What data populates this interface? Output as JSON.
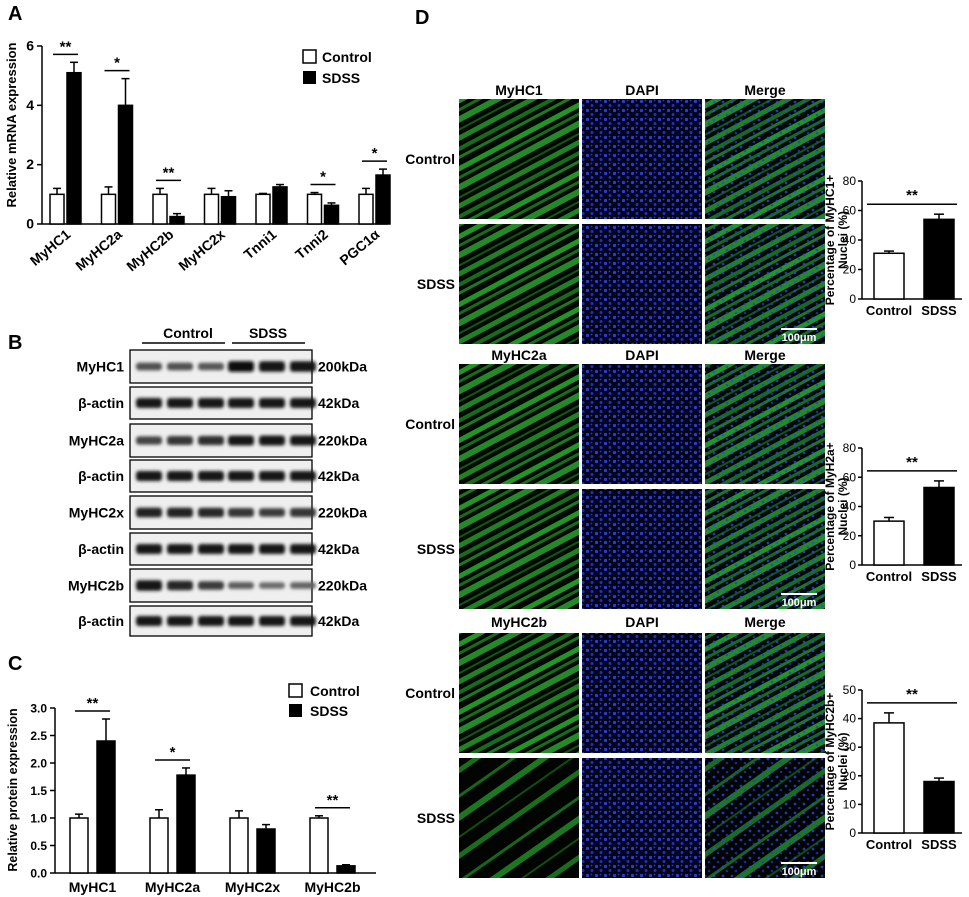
{
  "panels": {
    "A": {
      "letter": "A",
      "ylabel": "Relative mRNA expression",
      "legend": [
        "Control",
        "SDSS"
      ],
      "yticks": [
        "0",
        "2",
        "4",
        "6"
      ],
      "chart_data": {
        "type": "bar",
        "categories": [
          "MyHC1",
          "MyHC2a",
          "MyHC2b",
          "MyHC2x",
          "Tnni1",
          "Tnni2",
          "PGC1α"
        ],
        "ylim": [
          0,
          6
        ],
        "series": [
          {
            "name": "Control",
            "values": [
              1.0,
              1.0,
              1.0,
              1.0,
              1.0,
              1.0,
              1.0
            ],
            "errors": [
              0.2,
              0.25,
              0.2,
              0.2,
              0.03,
              0.06,
              0.2
            ]
          },
          {
            "name": "SDSS",
            "values": [
              5.1,
              4.0,
              0.25,
              0.92,
              1.25,
              0.63,
              1.65
            ],
            "errors": [
              0.35,
              0.9,
              0.1,
              0.2,
              0.08,
              0.08,
              0.2
            ]
          }
        ],
        "significance": [
          "**",
          "*",
          "**",
          "",
          "",
          "*",
          "*"
        ]
      }
    },
    "B": {
      "letter": "B",
      "groups": [
        "Control",
        "SDSS"
      ],
      "rows": [
        {
          "label": "MyHC1",
          "size": "200kDa",
          "intensity": [
            0.45,
            0.45,
            0.4,
            0.95,
            0.9,
            0.9
          ]
        },
        {
          "label": "β-actin",
          "size": "42kDa",
          "intensity": [
            0.85,
            0.85,
            0.85,
            0.85,
            0.85,
            0.85
          ]
        },
        {
          "label": "MyHC2a",
          "size": "220kDa",
          "intensity": [
            0.55,
            0.65,
            0.7,
            0.85,
            0.85,
            0.85
          ]
        },
        {
          "label": "β-actin",
          "size": "42kDa",
          "intensity": [
            0.85,
            0.85,
            0.85,
            0.85,
            0.85,
            0.85
          ]
        },
        {
          "label": "MyHC2x",
          "size": "220kDa",
          "intensity": [
            0.8,
            0.8,
            0.75,
            0.65,
            0.6,
            0.65
          ]
        },
        {
          "label": "β-actin",
          "size": "42kDa",
          "intensity": [
            0.85,
            0.85,
            0.85,
            0.85,
            0.85,
            0.85
          ]
        },
        {
          "label": "MyHC2b",
          "size": "220kDa",
          "intensity": [
            0.9,
            0.75,
            0.6,
            0.35,
            0.25,
            0.3
          ]
        },
        {
          "label": "β-actin",
          "size": "42kDa",
          "intensity": [
            0.85,
            0.85,
            0.85,
            0.85,
            0.85,
            0.85
          ]
        }
      ]
    },
    "C": {
      "letter": "C",
      "ylabel": "Relative protein expression",
      "legend": [
        "Control",
        "SDSS"
      ],
      "yticks": [
        "0.0",
        "0.5",
        "1.0",
        "1.5",
        "2.0",
        "2.5",
        "3.0"
      ],
      "chart_data": {
        "type": "bar",
        "categories": [
          "MyHC1",
          "MyHC2a",
          "MyHC2x",
          "MyHC2b"
        ],
        "ylim": [
          0,
          3.0
        ],
        "series": [
          {
            "name": "Control",
            "values": [
              1.0,
              1.0,
              1.0,
              1.0
            ],
            "errors": [
              0.07,
              0.15,
              0.13,
              0.04
            ]
          },
          {
            "name": "SDSS",
            "values": [
              2.4,
              1.78,
              0.8,
              0.13
            ],
            "errors": [
              0.4,
              0.13,
              0.08,
              0.02
            ]
          }
        ],
        "significance": [
          "**",
          "*",
          "",
          "**"
        ]
      }
    },
    "D": {
      "letter": "D",
      "row_labels": [
        "Control",
        "SDSS"
      ],
      "scale_bar": "100μm",
      "blocks": [
        {
          "columns": [
            "MyHC1",
            "DAPI",
            "Merge"
          ],
          "ylabel": [
            "Percentage of MyHC1+",
            "Nuclei (%)"
          ],
          "yticks": [
            "0",
            "20",
            "40",
            "60",
            "80"
          ],
          "chart_data": {
            "type": "bar",
            "categories": [
              "Control",
              "SDSS"
            ],
            "ylim": [
              0,
              80
            ],
            "values": [
              31,
              54
            ],
            "errors": [
              1.5,
              3.5
            ],
            "significance": "**"
          }
        },
        {
          "columns": [
            "MyHC2a",
            "DAPI",
            "Merge"
          ],
          "ylabel": [
            "Percentage of MyH2a+",
            "Nuclei (%)"
          ],
          "yticks": [
            "0",
            "20",
            "40",
            "60",
            "80"
          ],
          "chart_data": {
            "type": "bar",
            "categories": [
              "Control",
              "SDSS"
            ],
            "ylim": [
              0,
              80
            ],
            "values": [
              30,
              53
            ],
            "errors": [
              2.5,
              4.5
            ],
            "significance": "**"
          }
        },
        {
          "columns": [
            "MyHC2b",
            "DAPI",
            "Merge"
          ],
          "ylabel": [
            "Percentage of MyHC2b+",
            "Nuclei (%)"
          ],
          "yticks": [
            "0",
            "10",
            "20",
            "30",
            "40",
            "50"
          ],
          "chart_data": {
            "type": "bar",
            "categories": [
              "Control",
              "SDSS"
            ],
            "ylim": [
              0,
              50
            ],
            "values": [
              38.5,
              18
            ],
            "errors": [
              3.5,
              1.2
            ],
            "significance": "**"
          }
        }
      ]
    }
  }
}
